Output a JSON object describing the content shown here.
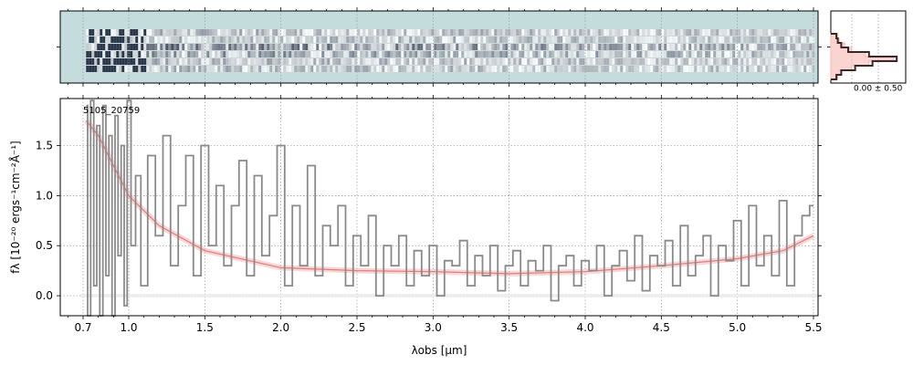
{
  "chart_data": [
    {
      "panel": "2d-spectrum",
      "type": "heatmap",
      "colormap": [
        "#ffffff",
        "#1a2238"
      ],
      "background": "#c5dcdc",
      "x": [
        0.72,
        5.5
      ],
      "rows": 6,
      "xlim": [
        0.55,
        5.53
      ],
      "xticks": [
        0.7,
        1.0,
        1.5,
        2.0,
        2.5,
        3.0,
        3.5,
        4.0,
        4.5,
        5.0,
        5.5
      ],
      "grid": true
    },
    {
      "panel": "cross-dispersion-profile",
      "type": "line",
      "label": "0.00 ± 0.50",
      "series": [
        {
          "color": "#3d2626",
          "y": [
            0.55,
            0.4,
            0.6,
            1.0,
            0.8,
            0.0,
            0.05,
            0.55,
            0.15,
            0.05
          ],
          "x": [
            0.08,
            0.1,
            0.15,
            0.25,
            0.55,
            0.95,
            0.6,
            0.35,
            0.15,
            0.08
          ]
        },
        {
          "color": "#f6b8b0",
          "fill": true,
          "y": [
            0.55,
            0.4,
            0.6,
            1.0,
            0.8,
            0.0,
            0.05,
            0.55,
            0.15,
            0.05
          ],
          "x": [
            0.1,
            0.12,
            0.2,
            0.3,
            0.5,
            0.9,
            0.55,
            0.3,
            0.12,
            0.1
          ]
        }
      ]
    },
    {
      "panel": "1d-spectrum",
      "type": "line",
      "annotation": "5105_20759",
      "xlabel": "λobs [μm]",
      "ylabel": "fλ [10⁻²⁰ ergs⁻¹cm⁻²Å⁻¹]",
      "xlim": [
        0.55,
        5.53
      ],
      "ylim": [
        -0.2,
        1.97
      ],
      "xticks": [
        0.7,
        1.0,
        1.5,
        2.0,
        2.5,
        3.0,
        3.5,
        4.0,
        4.5,
        5.0,
        5.5
      ],
      "yticks": [
        0.0,
        0.5,
        1.0,
        1.5
      ],
      "grid": true,
      "series": [
        {
          "style": "model",
          "color": "#f4a3a3",
          "x": [
            0.72,
            0.8,
            0.9,
            1.0,
            1.2,
            1.5,
            2.0,
            2.5,
            3.0,
            3.5,
            4.0,
            4.5,
            5.0,
            5.3,
            5.5
          ],
          "y": [
            1.75,
            1.6,
            1.3,
            1.0,
            0.7,
            0.45,
            0.28,
            0.25,
            0.24,
            0.22,
            0.24,
            0.3,
            0.37,
            0.45,
            0.6
          ]
        },
        {
          "style": "data",
          "color": "#8a8a8a",
          "x": [
            0.72,
            0.74,
            0.76,
            0.78,
            0.8,
            0.82,
            0.84,
            0.86,
            0.88,
            0.9,
            0.92,
            0.94,
            0.96,
            0.98,
            1.0,
            1.03,
            1.06,
            1.1,
            1.15,
            1.2,
            1.25,
            1.3,
            1.35,
            1.4,
            1.45,
            1.5,
            1.55,
            1.6,
            1.65,
            1.7,
            1.75,
            1.8,
            1.85,
            1.9,
            1.95,
            2.0,
            2.05,
            2.1,
            2.15,
            2.2,
            2.25,
            2.3,
            2.35,
            2.4,
            2.45,
            2.5,
            2.55,
            2.6,
            2.65,
            2.7,
            2.75,
            2.8,
            2.85,
            2.9,
            2.95,
            3.0,
            3.05,
            3.1,
            3.15,
            3.2,
            3.25,
            3.3,
            3.35,
            3.4,
            3.45,
            3.5,
            3.55,
            3.6,
            3.65,
            3.7,
            3.75,
            3.8,
            3.85,
            3.9,
            3.95,
            4.0,
            4.05,
            4.1,
            4.15,
            4.2,
            4.25,
            4.3,
            4.35,
            4.4,
            4.45,
            4.5,
            4.55,
            4.6,
            4.65,
            4.7,
            4.75,
            4.8,
            4.85,
            4.9,
            4.95,
            5.0,
            5.05,
            5.1,
            5.15,
            5.2,
            5.25,
            5.3,
            5.35,
            5.4,
            5.45,
            5.5
          ],
          "y": [
            1.9,
            -0.2,
            1.95,
            0.1,
            1.7,
            -0.2,
            1.9,
            0.2,
            1.6,
            -0.2,
            1.8,
            0.4,
            1.5,
            -0.1,
            1.95,
            0.5,
            1.2,
            0.1,
            1.4,
            0.6,
            1.6,
            0.3,
            0.9,
            1.4,
            0.2,
            1.5,
            0.5,
            1.1,
            0.3,
            0.9,
            1.35,
            0.2,
            1.2,
            0.4,
            0.8,
            1.5,
            0.1,
            0.9,
            0.3,
            1.3,
            0.2,
            0.7,
            0.5,
            0.9,
            0.1,
            0.6,
            0.3,
            0.8,
            0.0,
            0.5,
            0.3,
            0.6,
            0.1,
            0.45,
            0.2,
            0.5,
            0.0,
            0.35,
            0.3,
            0.55,
            0.1,
            0.4,
            0.2,
            0.5,
            0.05,
            0.3,
            0.45,
            0.1,
            0.35,
            0.25,
            0.5,
            -0.05,
            0.3,
            0.4,
            0.1,
            0.35,
            0.25,
            0.5,
            0.0,
            0.3,
            0.45,
            0.15,
            0.6,
            0.05,
            0.4,
            0.3,
            0.55,
            0.1,
            0.7,
            0.2,
            0.4,
            0.6,
            0.0,
            0.5,
            0.35,
            0.75,
            0.1,
            0.9,
            0.3,
            0.6,
            0.2,
            0.95,
            0.1,
            0.6,
            0.8,
            0.9
          ]
        }
      ]
    }
  ]
}
